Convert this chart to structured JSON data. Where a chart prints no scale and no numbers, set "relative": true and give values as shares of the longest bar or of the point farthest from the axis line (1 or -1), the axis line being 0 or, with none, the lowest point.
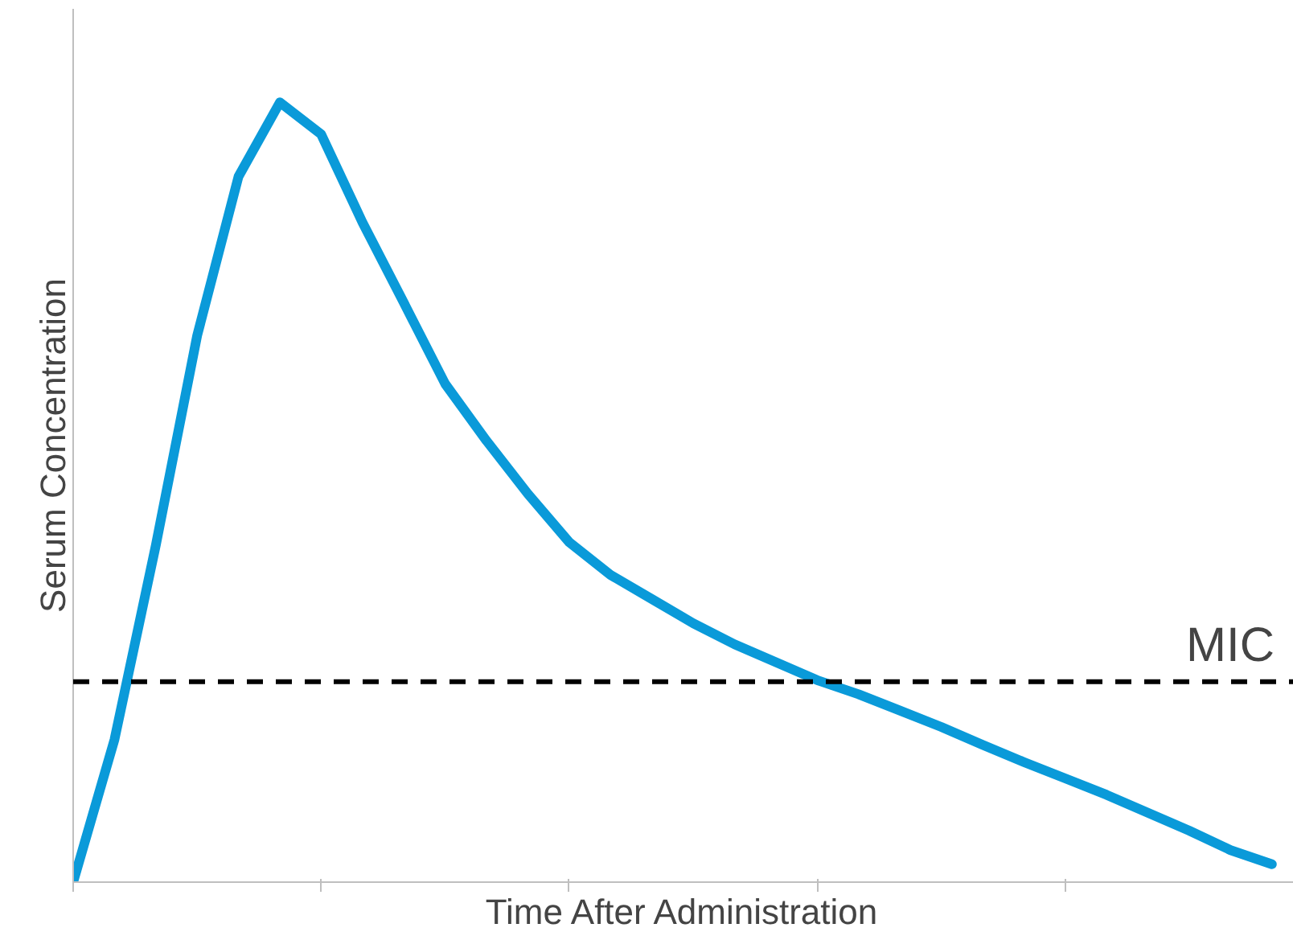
{
  "chart_data": {
    "type": "line",
    "relative": true,
    "xlabel": "Time After Administration",
    "ylabel": "Serum Concentration",
    "categories": [
      null,
      null,
      null,
      null,
      null,
      null,
      null,
      null,
      null,
      null,
      null,
      null,
      null,
      null,
      null,
      null,
      null,
      null,
      null,
      null,
      null,
      null,
      null,
      null,
      null,
      null,
      null,
      null,
      null,
      null
    ],
    "series": [
      {
        "color": "#0a9ad9",
        "values": [
          0,
          0.183,
          0.432,
          0.701,
          0.905,
          1.0,
          0.959,
          0.846,
          0.743,
          0.639,
          0.566,
          0.498,
          0.436,
          0.394,
          0.363,
          0.332,
          0.305,
          0.282,
          0.259,
          0.241,
          0.22,
          0.199,
          0.176,
          0.154,
          0.133,
          0.112,
          0.089,
          0.066,
          0.041,
          0.023
        ]
      }
    ],
    "ref_lines": [
      {
        "axis": "y",
        "value": 0.257,
        "label": "MIC",
        "color": "#000000",
        "line_style": "dashed"
      }
    ],
    "line_style": "solid"
  }
}
